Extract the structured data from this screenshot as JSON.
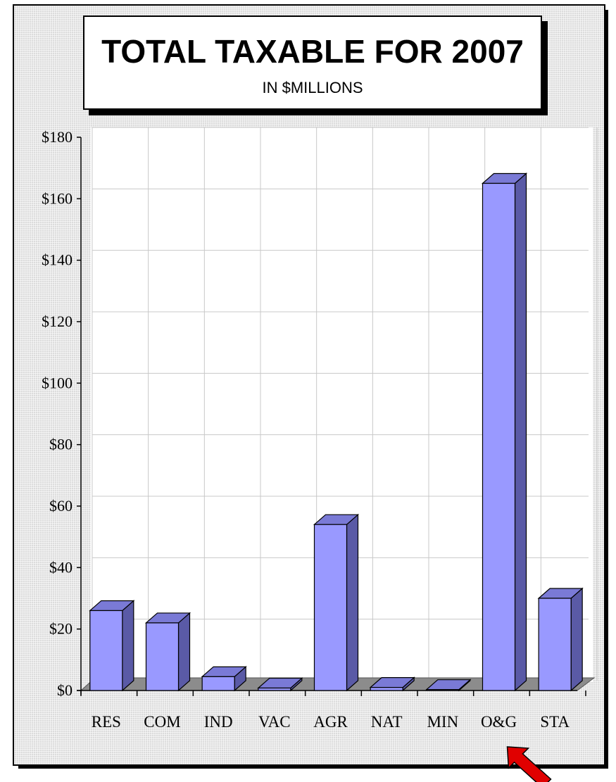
{
  "chart_data": {
    "type": "bar",
    "title": "TOTAL TAXABLE FOR 2007",
    "subtitle": "IN $MILLIONS",
    "categories": [
      "RES",
      "COM",
      "IND",
      "VAC",
      "AGR",
      "NAT",
      "MIN",
      "O&G",
      "STA"
    ],
    "values": [
      26,
      22,
      4.5,
      0.8,
      54,
      1,
      0.3,
      165,
      30
    ],
    "ylim": [
      0,
      180
    ],
    "yticks": [
      0,
      20,
      40,
      60,
      80,
      100,
      120,
      140,
      160,
      180
    ],
    "ytick_labels": [
      "$0",
      "$20",
      "$40",
      "$60",
      "$80",
      "$100",
      "$120",
      "$140",
      "$160",
      "$180"
    ],
    "grid": true,
    "highlighted_category": "O&G",
    "bar_color": "#9999ff",
    "bar_side_color": "#5a5aa6",
    "bar_top_color": "#7a7ad6",
    "arrow_color": "#e00000"
  }
}
